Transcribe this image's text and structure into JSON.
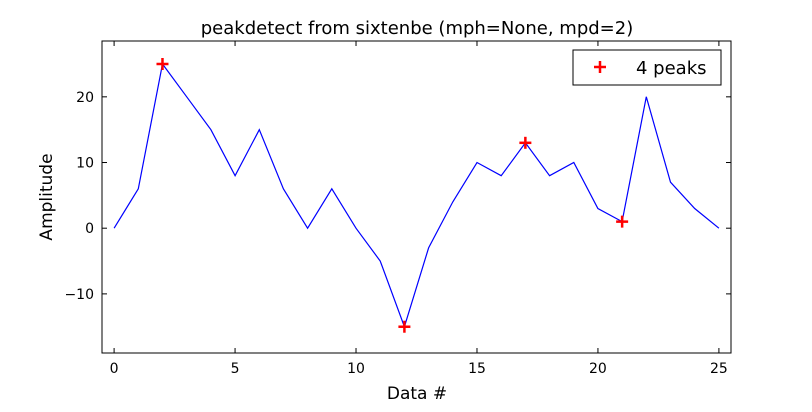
{
  "chart_data": {
    "type": "line",
    "title": "peakdetect from sixtenbe (mph=None, mpd=2)",
    "xlabel": "Data #",
    "ylabel": "Amplitude",
    "xlim": [
      -0.5,
      25.5
    ],
    "ylim": [
      -19,
      28.5
    ],
    "xticks": [
      0,
      5,
      10,
      15,
      20,
      25
    ],
    "yticks": [
      -10,
      0,
      10,
      20
    ],
    "ytick_labels": [
      "−10",
      "0",
      "10",
      "20"
    ],
    "grid": false,
    "legend_position": "top-right",
    "colors": {
      "line": "#0000ff",
      "peaks": "#ff0000"
    },
    "series": [
      {
        "x": [
          0,
          1,
          2,
          3,
          4,
          5,
          6,
          7,
          8,
          9,
          10,
          11,
          12,
          13,
          14,
          15,
          16,
          17,
          18,
          19,
          20,
          21,
          22,
          23,
          24,
          25
        ],
        "values": [
          0,
          6,
          25,
          20,
          15,
          8,
          15,
          6,
          0,
          6,
          0,
          -5,
          -15,
          -3,
          4,
          10,
          8,
          13,
          8,
          10,
          3,
          1,
          20,
          7,
          3,
          0
        ]
      },
      {
        "name": "4 peaks",
        "marker": "+",
        "x": [
          2,
          12,
          17,
          21
        ],
        "values": [
          25,
          -15,
          13,
          1
        ]
      }
    ]
  }
}
